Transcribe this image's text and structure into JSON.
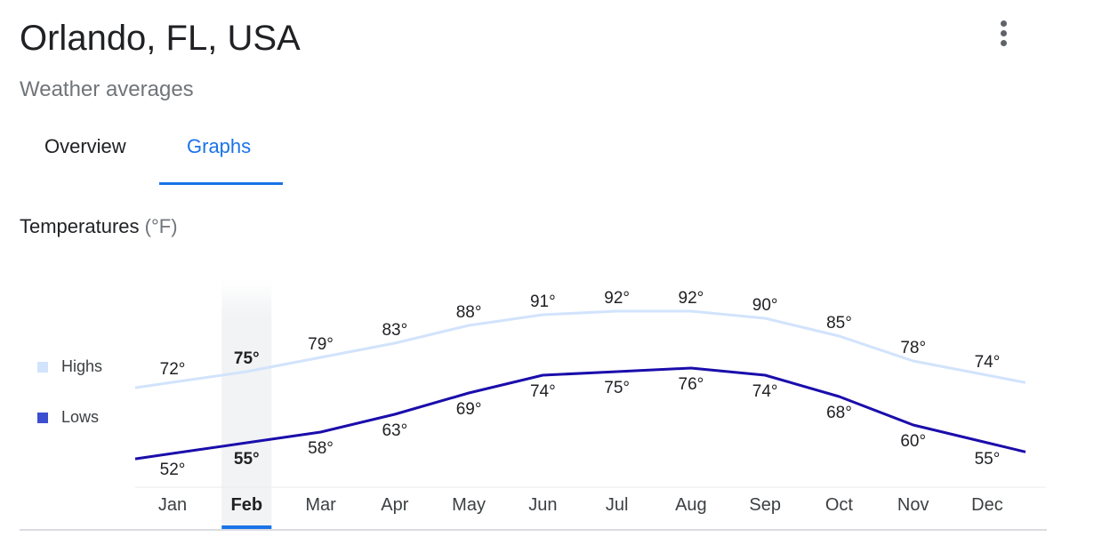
{
  "header": {
    "title": "Orlando, FL, USA",
    "subtitle": "Weather averages",
    "more_icon": "more-vert-icon"
  },
  "tabs": [
    {
      "label": "Overview",
      "active": false
    },
    {
      "label": "Graphs",
      "active": true
    }
  ],
  "section": {
    "title": "Temperatures",
    "unit": "(°F)"
  },
  "colors": {
    "accent": "#1a73e8",
    "highs_line": "#d2e3fc",
    "highs_swatch": "#d2e3fc",
    "lows_line": "#1a0dab",
    "lows_swatch": "#3c4fd0",
    "selected_column": "#f1f3f4"
  },
  "legend": [
    {
      "label": "Highs"
    },
    {
      "label": "Lows"
    }
  ],
  "selected_month_index": 1,
  "chart_data": {
    "type": "line",
    "title": "Temperatures (°F)",
    "xlabel": "",
    "ylabel": "",
    "categories": [
      "Jan",
      "Feb",
      "Mar",
      "Apr",
      "May",
      "Jun",
      "Jul",
      "Aug",
      "Sep",
      "Oct",
      "Nov",
      "Dec"
    ],
    "series": [
      {
        "name": "Highs",
        "values": [
          72,
          75,
          79,
          83,
          88,
          91,
          92,
          92,
          90,
          85,
          78,
          74
        ]
      },
      {
        "name": "Lows",
        "values": [
          52,
          55,
          58,
          63,
          69,
          74,
          75,
          76,
          74,
          68,
          60,
          55
        ]
      }
    ],
    "value_suffix": "°",
    "grid": false,
    "legend_position": "left",
    "highlighted_category": "Feb"
  }
}
